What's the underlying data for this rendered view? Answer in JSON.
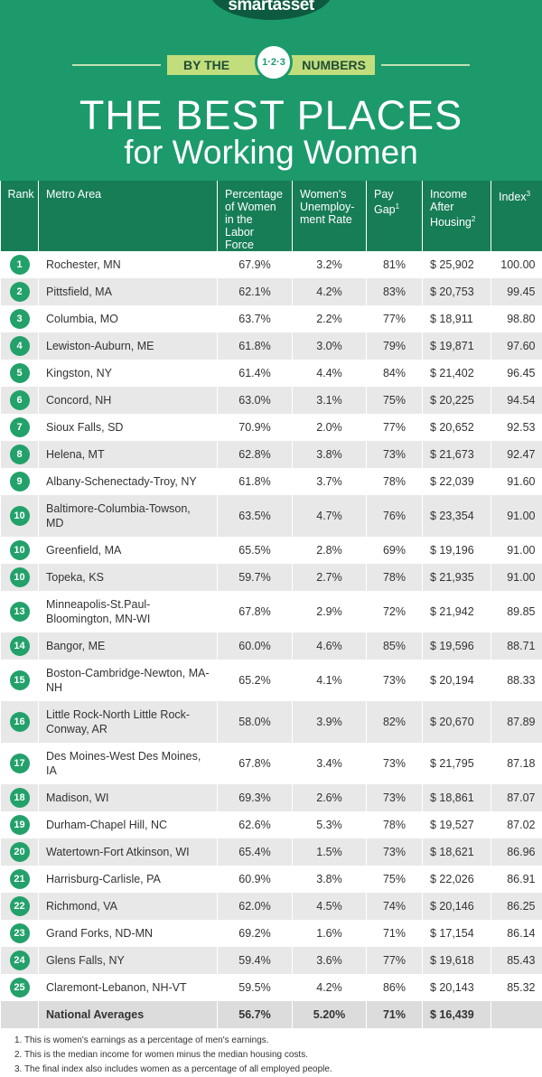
{
  "header": {
    "brand": "smartasset",
    "ribbon_left": "BY THE",
    "ribbon_badge": "1·2·3",
    "ribbon_right": "NUMBERS",
    "title_line1": "THE BEST PLACES",
    "title_line2": "for Working Women"
  },
  "table": {
    "columns": [
      {
        "label": "Rank"
      },
      {
        "label": "Metro Area"
      },
      {
        "label": "Percentage of Women in the Labor Force"
      },
      {
        "label": "Women's Unemploy-ment Rate"
      },
      {
        "label": "Pay Gap",
        "note": "1"
      },
      {
        "label": "Income After Housing",
        "note": "2"
      },
      {
        "label": "Index",
        "note": "3"
      }
    ],
    "rows": [
      [
        "1",
        "Rochester, MN",
        "67.9%",
        "3.2%",
        "81%",
        "$ 25,902",
        "100.00"
      ],
      [
        "2",
        "Pittsfield, MA",
        "62.1%",
        "4.2%",
        "83%",
        "$ 20,753",
        "99.45"
      ],
      [
        "3",
        "Columbia, MO",
        "63.7%",
        "2.2%",
        "77%",
        "$ 18,911",
        "98.80"
      ],
      [
        "4",
        "Lewiston-Auburn, ME",
        "61.8%",
        "3.0%",
        "79%",
        "$ 19,871",
        "97.60"
      ],
      [
        "5",
        "Kingston, NY",
        "61.4%",
        "4.4%",
        "84%",
        "$ 21,402",
        "96.45"
      ],
      [
        "6",
        "Concord, NH",
        "63.0%",
        "3.1%",
        "75%",
        "$ 20,225",
        "94.54"
      ],
      [
        "7",
        "Sioux Falls, SD",
        "70.9%",
        "2.0%",
        "77%",
        "$ 20,652",
        "92.53"
      ],
      [
        "8",
        "Helena, MT",
        "62.8%",
        "3.8%",
        "73%",
        "$ 21,673",
        "92.47"
      ],
      [
        "9",
        "Albany-Schenectady-Troy, NY",
        "61.8%",
        "3.7%",
        "78%",
        "$ 22,039",
        "91.60"
      ],
      [
        "10",
        "Baltimore-Columbia-Towson, MD",
        "63.5%",
        "4.7%",
        "76%",
        "$ 23,354",
        "91.00"
      ],
      [
        "10",
        "Greenfield, MA",
        "65.5%",
        "2.8%",
        "69%",
        "$ 19,196",
        "91.00"
      ],
      [
        "10",
        "Topeka, KS",
        "59.7%",
        "2.7%",
        "78%",
        "$ 21,935",
        "91.00"
      ],
      [
        "13",
        "Minneapolis-St.Paul-Bloomington, MN-WI",
        "67.8%",
        "2.9%",
        "72%",
        "$ 21,942",
        "89.85"
      ],
      [
        "14",
        "Bangor, ME",
        "60.0%",
        "4.6%",
        "85%",
        "$ 19,596",
        "88.71"
      ],
      [
        "15",
        "Boston-Cambridge-Newton, MA-NH",
        "65.2%",
        "4.1%",
        "73%",
        "$ 20,194",
        "88.33"
      ],
      [
        "16",
        "Little Rock-North Little Rock-Conway, AR",
        "58.0%",
        "3.9%",
        "82%",
        "$ 20,670",
        "87.89"
      ],
      [
        "17",
        "Des Moines-West Des Moines, IA",
        "67.8%",
        "3.4%",
        "73%",
        "$ 21,795",
        "87.18"
      ],
      [
        "18",
        "Madison, WI",
        "69.3%",
        "2.6%",
        "73%",
        "$ 18,861",
        "87.07"
      ],
      [
        "19",
        "Durham-Chapel Hill, NC",
        "62.6%",
        "5.3%",
        "78%",
        "$ 19,527",
        "87.02"
      ],
      [
        "20",
        "Watertown-Fort Atkinson, WI",
        "65.4%",
        "1.5%",
        "73%",
        "$ 18,621",
        "86.96"
      ],
      [
        "21",
        "Harrisburg-Carlisle, PA",
        "60.9%",
        "3.8%",
        "75%",
        "$ 22,026",
        "86.91"
      ],
      [
        "22",
        "Richmond, VA",
        "62.0%",
        "4.5%",
        "74%",
        "$ 20,146",
        "86.25"
      ],
      [
        "23",
        "Grand Forks, ND-MN",
        "69.2%",
        "1.6%",
        "71%",
        "$ 17,154",
        "86.14"
      ],
      [
        "24",
        "Glens Falls, NY",
        "59.4%",
        "3.6%",
        "77%",
        "$ 19,618",
        "85.43"
      ],
      [
        "25",
        "Claremont-Lebanon, NH-VT",
        "59.5%",
        "4.2%",
        "86%",
        "$ 20,143",
        "85.32"
      ]
    ],
    "averages": {
      "label": "National Averages",
      "values": [
        "56.7%",
        "5.20%",
        "71%",
        "$ 16,439"
      ]
    }
  },
  "footnotes": [
    "1. This is women's earnings as a percentage of men's earnings.",
    "2. This is the median income for women minus the median housing costs.",
    "3. The final index also includes women as a percentage of all employed people."
  ]
}
